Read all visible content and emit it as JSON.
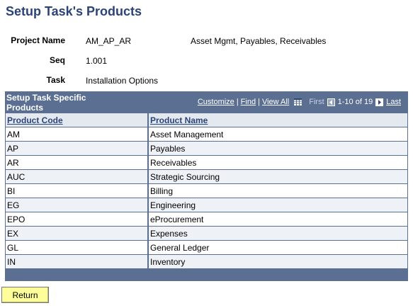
{
  "page": {
    "title": "Setup Task's Products"
  },
  "fields": {
    "project": {
      "label": "Project Name",
      "code": "AM_AP_AR",
      "description": "Asset Mgmt, Payables, Receivables"
    },
    "seq": {
      "label": "Seq",
      "value": "1.001"
    },
    "task": {
      "label": "Task",
      "value": "Installation Options"
    }
  },
  "grid": {
    "title": "Setup Task Specific Products",
    "nav": {
      "customize": "Customize",
      "find": "Find",
      "view_all": "View All",
      "download_icon": "grid-download-icon",
      "first": "First",
      "range": "1-10 of 19",
      "last": "Last",
      "separator": "|"
    },
    "columns": [
      "Product Code",
      "Product Name"
    ],
    "rows": [
      [
        "AM",
        "Asset Management"
      ],
      [
        "AP",
        "Payables"
      ],
      [
        "AR",
        "Receivables"
      ],
      [
        "AUC",
        "Strategic Sourcing"
      ],
      [
        "BI",
        "Billing"
      ],
      [
        "EG",
        "Engineering"
      ],
      [
        "EPO",
        "eProcurement"
      ],
      [
        "EX",
        "Expenses"
      ],
      [
        "GL",
        "General Ledger"
      ],
      [
        "IN",
        "Inventory"
      ]
    ]
  },
  "actions": {
    "return_label": "Return"
  },
  "colors": {
    "title": "#2b4478",
    "grid_header": "#5b6f93",
    "button_bg": "#ffff99"
  }
}
